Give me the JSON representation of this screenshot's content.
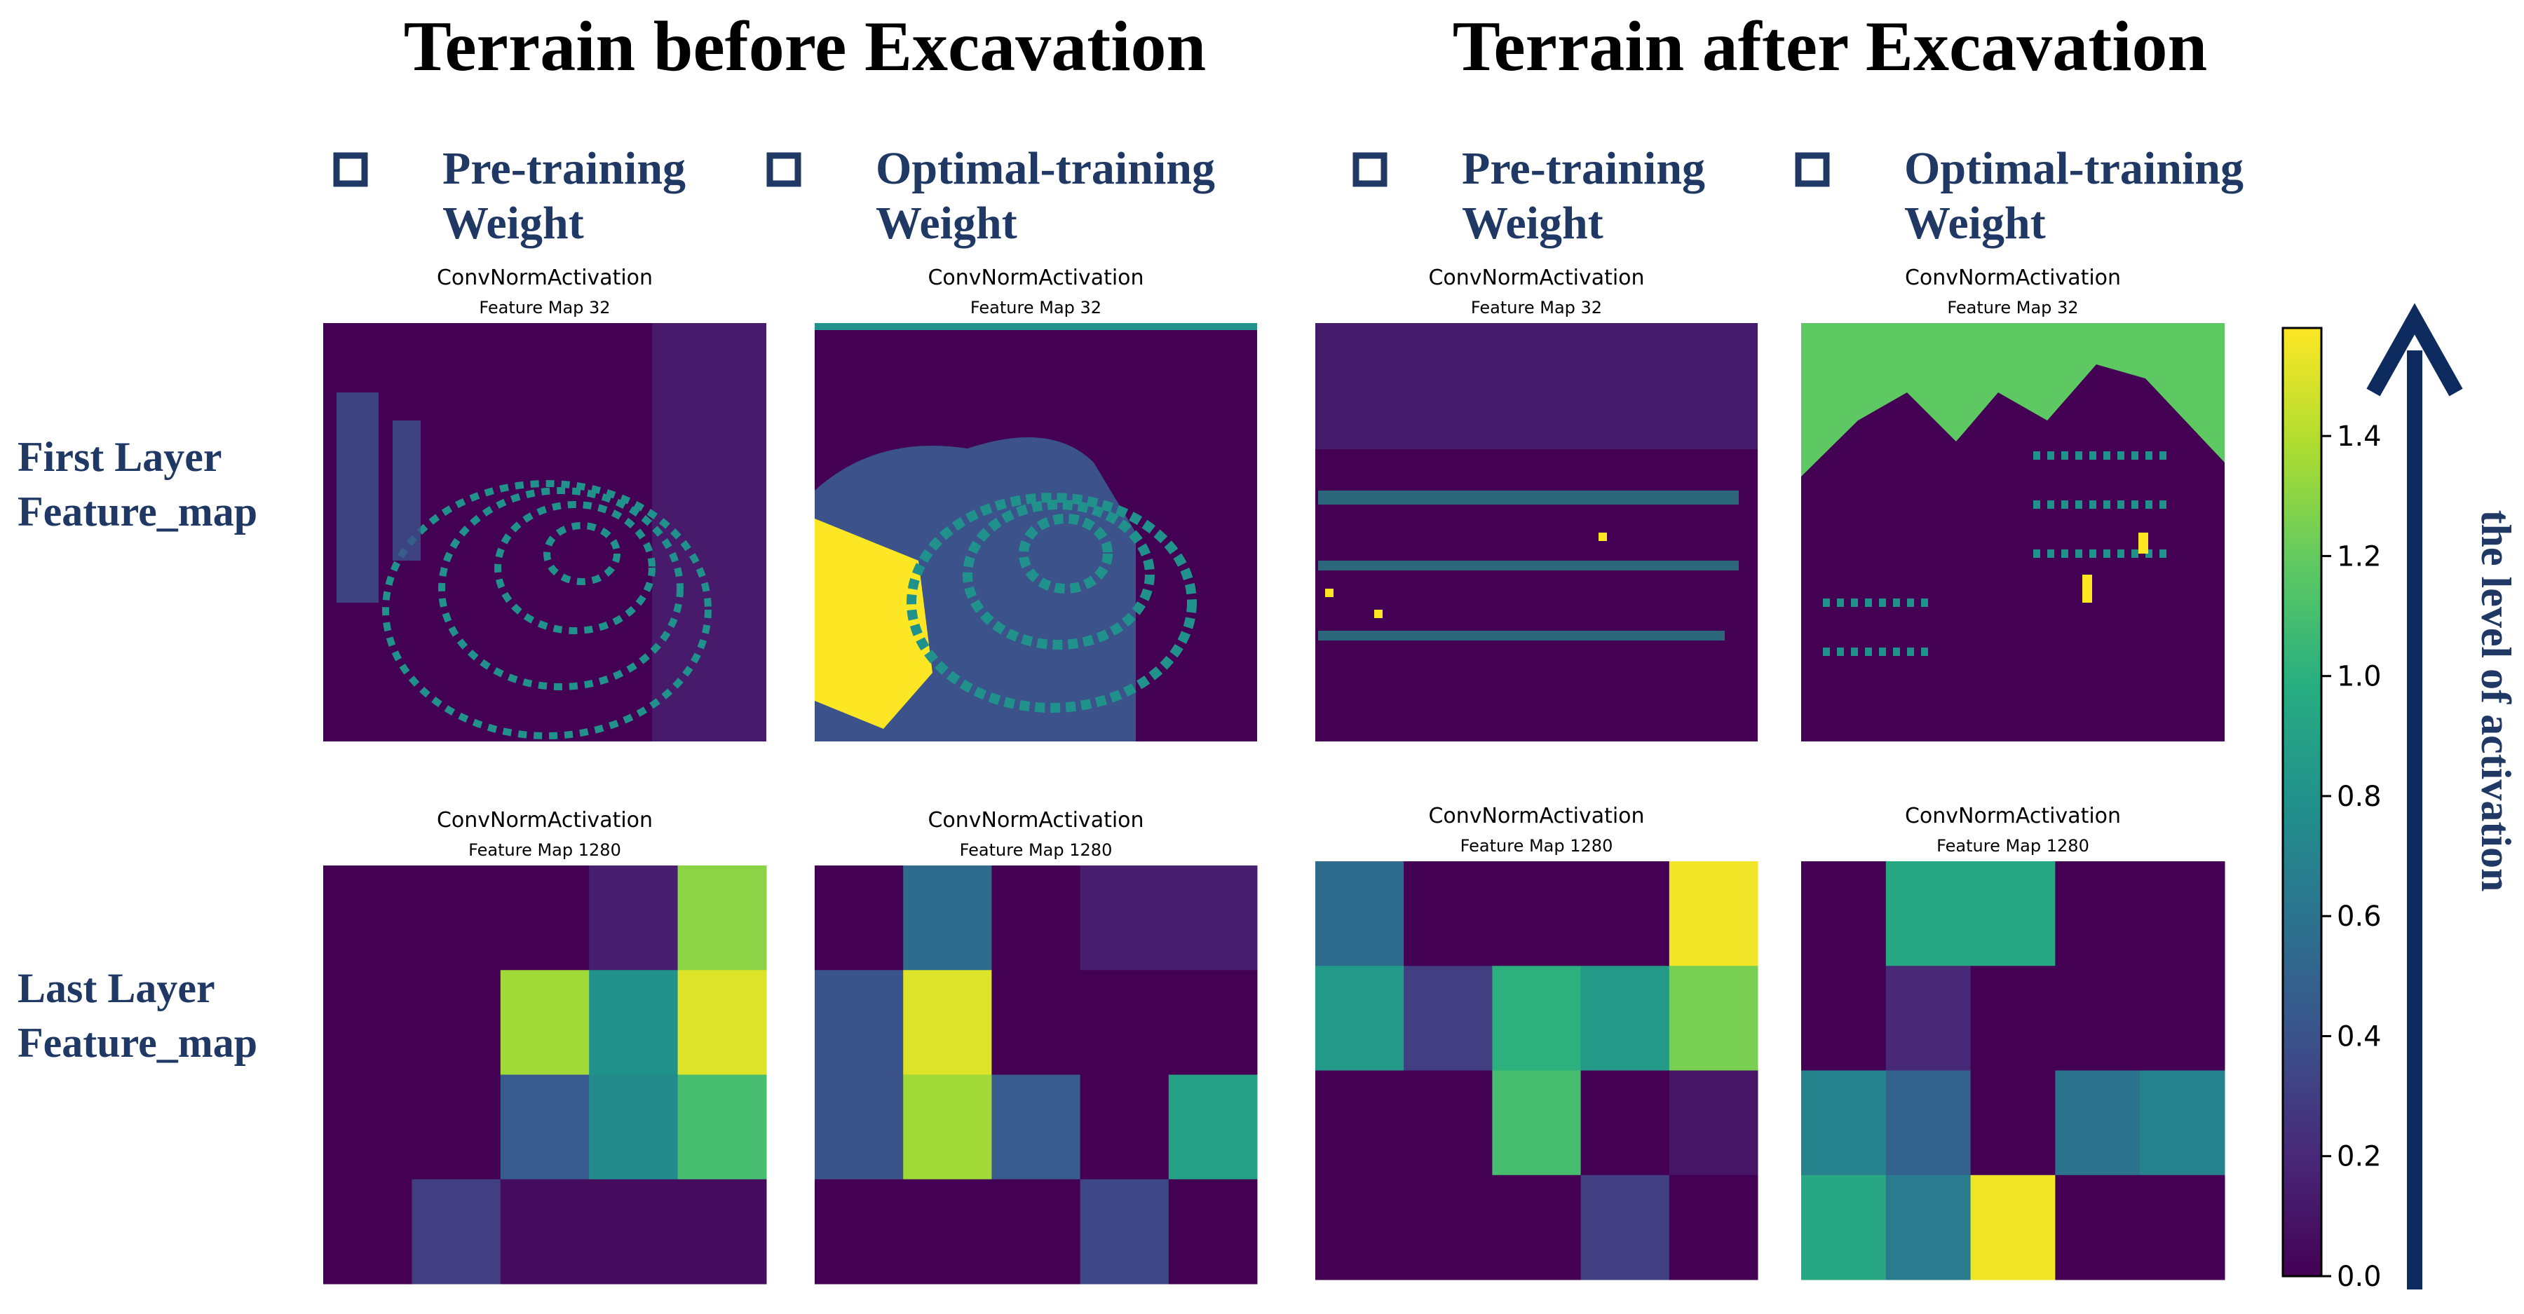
{
  "titles": [
    "Terrain before Excavation",
    "Terrain after Excavation"
  ],
  "legend": [
    [
      "Pre-training",
      "Weight"
    ],
    [
      "Optimal-training",
      "Weight"
    ],
    [
      "Pre-training",
      "Weight"
    ],
    [
      "Optimal-training",
      "Weight"
    ]
  ],
  "row_labels": [
    [
      "First Layer",
      "Feature_map"
    ],
    [
      "Last Layer",
      "Feature_map"
    ]
  ],
  "first_layer_maps": [
    {
      "title": "ConvNormActivation",
      "subtitle": "Feature Map 32"
    },
    {
      "title": "ConvNormActivation",
      "subtitle": "Feature Map 32"
    },
    {
      "title": "ConvNormActivation",
      "subtitle": "Feature Map 32"
    },
    {
      "title": "ConvNormActivation",
      "subtitle": "Feature Map 32"
    }
  ],
  "colorbar": {
    "label": "the level of activation",
    "zlim": [
      0,
      1.58
    ],
    "ticks": [
      {
        "value": 0,
        "label": "0.0"
      },
      0.2,
      0.4,
      0.6,
      0.8,
      {
        "value": 1,
        "label": "1.0"
      },
      1.2,
      1.4
    ],
    "colormap": "viridis"
  },
  "chart_data": [
    {
      "type": "heatmap",
      "title": "ConvNormActivation",
      "subtitle": "Feature Map 1280",
      "values": [
        [
          0,
          0,
          0,
          0.15,
          1.3
        ],
        [
          0,
          0,
          1.35,
          0.8,
          1.5
        ],
        [
          0,
          0,
          0.45,
          0.75,
          1.1
        ],
        [
          0,
          0.3,
          0.05,
          0.05,
          0.05
        ]
      ]
    },
    {
      "type": "heatmap",
      "title": "ConvNormActivation",
      "subtitle": "Feature Map 1280",
      "values": [
        [
          0,
          0.55,
          0,
          0.15,
          0.15
        ],
        [
          0.4,
          1.5,
          0,
          0,
          0
        ],
        [
          0.4,
          1.35,
          0.45,
          0,
          0.9
        ],
        [
          0,
          0,
          0,
          0.35,
          0
        ]
      ]
    },
    {
      "type": "heatmap",
      "title": "ConvNormActivation",
      "subtitle": "Feature Map 1280",
      "values": [
        [
          0.55,
          0,
          0,
          0,
          1.55
        ],
        [
          0.85,
          0.3,
          1.0,
          0.85,
          1.25
        ],
        [
          0,
          0,
          1.1,
          0,
          0.1
        ],
        [
          0,
          0,
          0,
          0.3,
          0
        ]
      ]
    },
    {
      "type": "heatmap",
      "title": "ConvNormActivation",
      "subtitle": "Feature Map 1280",
      "values": [
        [
          0,
          0.95,
          0.95,
          0,
          0
        ],
        [
          0,
          0.2,
          0,
          0,
          0
        ],
        [
          0.7,
          0.5,
          0,
          0.6,
          0.7
        ],
        [
          0.95,
          0.65,
          1.55,
          0,
          0
        ]
      ]
    }
  ]
}
